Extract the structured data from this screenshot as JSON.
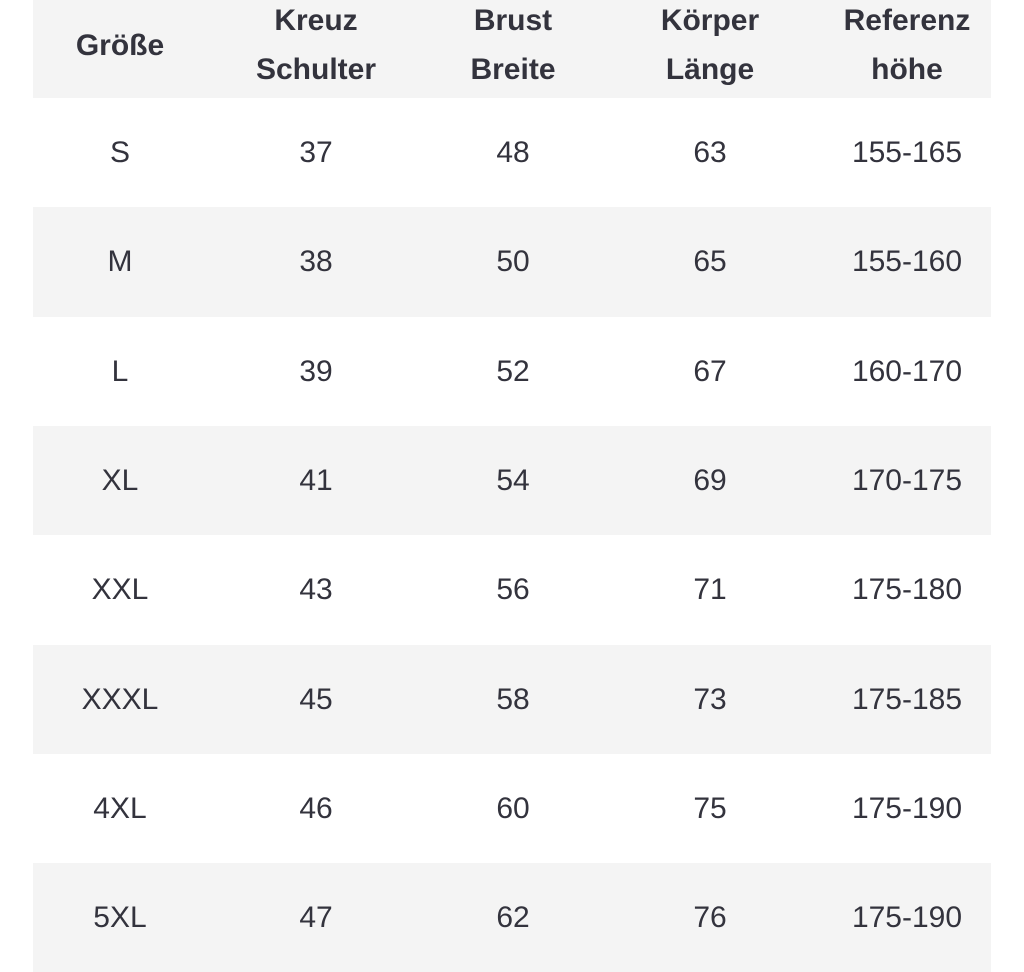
{
  "table": {
    "header": [
      [
        "Größe"
      ],
      [
        "Kreuz",
        "Schulter"
      ],
      [
        "Brust",
        "Breite"
      ],
      [
        "Körper",
        "Länge"
      ],
      [
        "Referenz",
        "höhe"
      ]
    ],
    "rows": [
      [
        "S",
        37,
        48,
        63,
        "155-165"
      ],
      [
        "M",
        38,
        50,
        65,
        "155-160"
      ],
      [
        "L",
        39,
        52,
        67,
        "160-170"
      ],
      [
        "XL",
        41,
        54,
        69,
        "170-175"
      ],
      [
        "XXL",
        43,
        56,
        71,
        "175-180"
      ],
      [
        "XXXL",
        45,
        58,
        73,
        "175-185"
      ],
      [
        "4XL",
        46,
        60,
        75,
        "175-190"
      ],
      [
        "5XL",
        47,
        62,
        76,
        "175-190"
      ]
    ]
  }
}
